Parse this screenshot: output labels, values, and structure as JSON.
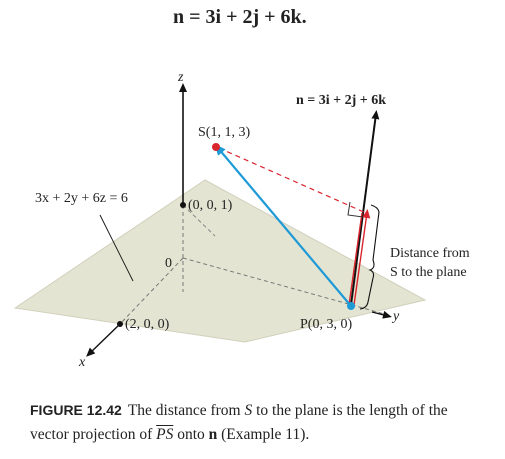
{
  "header_equation": "n = 3i + 2j + 6k.",
  "axes": {
    "z": "z",
    "y": "y",
    "x": "x"
  },
  "labels": {
    "normal_vector": "n = 3i + 2j + 6k",
    "point_s": "S(1, 1, 3)",
    "plane_equation": "3x + 2y + 6z = 6",
    "z_intercept": "(0, 0, 1)",
    "origin": "0",
    "x_intercept": "(2, 0, 0)",
    "point_p": "P(0, 3, 0)",
    "distance_line1": "Distance from",
    "distance_line2": "S to the plane"
  },
  "caption": {
    "figure_number": "FIGURE 12.42",
    "text_part1": "The distance from ",
    "text_s": "S",
    "text_part2": " to the plane is the length of the vector projection of ",
    "text_ps": "PS",
    "text_part3": " onto ",
    "text_n": "n",
    "text_part4": " (Example 11)."
  },
  "colors": {
    "plane": "#e4e4d2",
    "vector_ps": "#1e9ad6",
    "projection": "#d9252e",
    "point_s": "#d9252e",
    "point_p": "#1e9ad6"
  }
}
